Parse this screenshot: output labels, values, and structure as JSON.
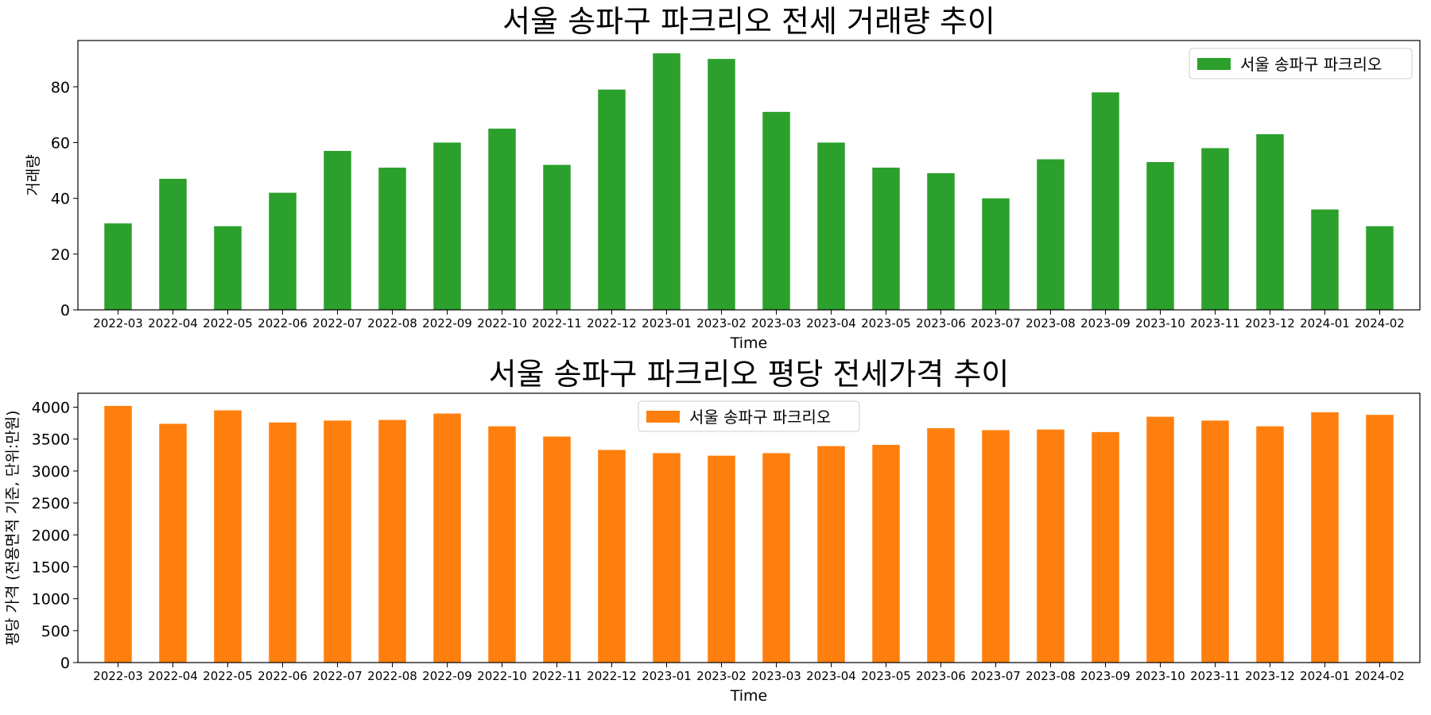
{
  "chart_data": [
    {
      "type": "bar",
      "title": "서울 송파구 파크리오 전세 거래량 추이",
      "xlabel": "Time",
      "ylabel": "거래량",
      "categories": [
        "2022-03",
        "2022-04",
        "2022-05",
        "2022-06",
        "2022-07",
        "2022-08",
        "2022-09",
        "2022-10",
        "2022-11",
        "2022-12",
        "2023-01",
        "2023-02",
        "2023-03",
        "2023-04",
        "2023-05",
        "2023-06",
        "2023-07",
        "2023-08",
        "2023-09",
        "2023-10",
        "2023-11",
        "2023-12",
        "2024-01",
        "2024-02"
      ],
      "series": [
        {
          "name": "서울 송파구 파크리오",
          "color": "#2ca02c",
          "values": [
            31,
            47,
            30,
            42,
            57,
            51,
            60,
            65,
            52,
            79,
            92,
            90,
            71,
            60,
            51,
            49,
            40,
            54,
            78,
            53,
            58,
            63,
            36,
            30
          ]
        }
      ],
      "ylim": [
        0,
        96.6
      ],
      "yticks": [
        0,
        20,
        40,
        60,
        80
      ],
      "legend": "top-right",
      "grid": false
    },
    {
      "type": "bar",
      "title": "서울 송파구 파크리오 평당 전세가격 추이",
      "xlabel": "Time",
      "ylabel": "평당 가격 (전용면적 기준, 단위:만원)",
      "categories": [
        "2022-03",
        "2022-04",
        "2022-05",
        "2022-06",
        "2022-07",
        "2022-08",
        "2022-09",
        "2022-10",
        "2022-11",
        "2022-12",
        "2023-01",
        "2023-02",
        "2023-03",
        "2023-04",
        "2023-05",
        "2023-06",
        "2023-07",
        "2023-08",
        "2023-09",
        "2023-10",
        "2023-11",
        "2023-12",
        "2024-01",
        "2024-02"
      ],
      "series": [
        {
          "name": "서울 송파구 파크리오",
          "color": "#ff7f0e",
          "values": [
            4020,
            3740,
            3950,
            3760,
            3790,
            3800,
            3900,
            3700,
            3540,
            3330,
            3280,
            3240,
            3280,
            3390,
            3410,
            3670,
            3640,
            3650,
            3610,
            3850,
            3790,
            3700,
            3920,
            3880
          ]
        }
      ],
      "ylim": [
        0,
        4218
      ],
      "yticks": [
        0,
        500,
        1000,
        1500,
        2000,
        2500,
        3000,
        3500,
        4000
      ],
      "legend": "top-center",
      "grid": false
    }
  ]
}
